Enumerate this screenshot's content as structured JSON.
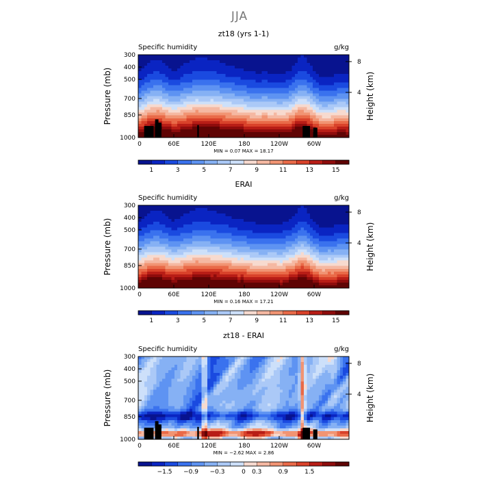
{
  "page_title": "JJA",
  "colors": {
    "moist_scale": [
      "#08138f",
      "#0a24c2",
      "#1a4ae0",
      "#3a72ee",
      "#5e93f2",
      "#86b1f4",
      "#abc9f7",
      "#cde0fa",
      "#f7dacf",
      "#f5b8a2",
      "#f19473",
      "#e96a48",
      "#d9422a",
      "#b81d16",
      "#8e0c0c",
      "#5f0404"
    ],
    "diff_scale": [
      "#08138f",
      "#0a24c2",
      "#1a4ae0",
      "#3a72ee",
      "#5e93f2",
      "#86b1f4",
      "#abc9f7",
      "#cde0fa",
      "#f7dacf",
      "#f5b8a2",
      "#f19473",
      "#e96a48",
      "#d9422a",
      "#b81d16",
      "#8e0c0c",
      "#5f0404"
    ],
    "topography": "#000000"
  },
  "chart_data": [
    {
      "type": "heatmap",
      "title": "zt18 (yrs 1-1)",
      "left_label": "Specific humidity",
      "units": "g/kg",
      "ylabel": "Pressure (mb)",
      "y2label": "Height (km)",
      "pressure_ticks": [
        "300",
        "400",
        "500",
        "700",
        "850",
        "1000"
      ],
      "height_ticks": [
        "8",
        "4"
      ],
      "x_ticks": [
        "0",
        "60E",
        "120E",
        "180",
        "120W",
        "60W"
      ],
      "stats_text": "MIN =    0.07   MAX =   18.17",
      "colorbar_labels": [
        "1",
        "3",
        "5",
        "7",
        "9",
        "11",
        "13",
        "15"
      ],
      "field": "moist",
      "min": 0.07,
      "max": 18.17
    },
    {
      "type": "heatmap",
      "title": "ERAI",
      "left_label": "Specific humidity",
      "units": "g/kg",
      "ylabel": "Pressure (mb)",
      "y2label": "Height (km)",
      "pressure_ticks": [
        "300",
        "400",
        "500",
        "700",
        "850",
        "1000"
      ],
      "height_ticks": [
        "8",
        "4"
      ],
      "x_ticks": [
        "0",
        "60E",
        "120E",
        "180",
        "120W",
        "60W"
      ],
      "stats_text": "MIN =    0.16   MAX =   17.21",
      "colorbar_labels": [
        "1",
        "3",
        "5",
        "7",
        "9",
        "11",
        "13",
        "15"
      ],
      "field": "moist",
      "min": 0.16,
      "max": 17.21
    },
    {
      "type": "heatmap",
      "title": "zt18 - ERAI",
      "left_label": "Specific humidity",
      "units": "g/kg",
      "ylabel": "Pressure (mb)",
      "y2label": "Height (km)",
      "pressure_ticks": [
        "300",
        "400",
        "500",
        "700",
        "850",
        "1000"
      ],
      "height_ticks": [
        "8",
        "4"
      ],
      "x_ticks": [
        "0",
        "60E",
        "120E",
        "180",
        "120W",
        "60W"
      ],
      "stats_text": "MIN =  −2.62   MAX =    2.86",
      "colorbar_labels": [
        "−1.5",
        "−0.9",
        "−0.3",
        "0",
        "0.3",
        "0.9",
        "1.5"
      ],
      "field": "diff",
      "min": -2.62,
      "max": 2.86
    }
  ]
}
